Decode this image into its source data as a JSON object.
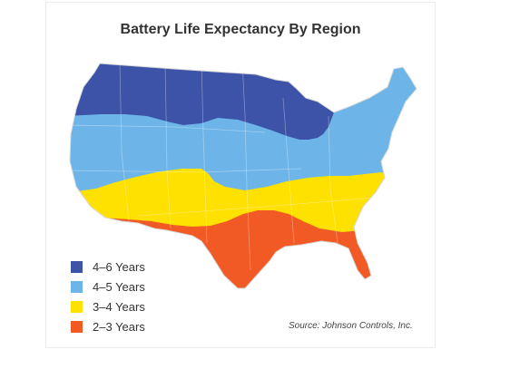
{
  "title": "Battery Life Expectancy By Region",
  "legend": [
    {
      "label": "4–6 Years",
      "color": "#3d53a8"
    },
    {
      "label": "4–5 Years",
      "color": "#6db5e8"
    },
    {
      "label": "3–4 Years",
      "color": "#ffe100"
    },
    {
      "label": "2–3 Years",
      "color": "#f15a24"
    }
  ],
  "source": "Source: Johnson Controls, Inc."
}
